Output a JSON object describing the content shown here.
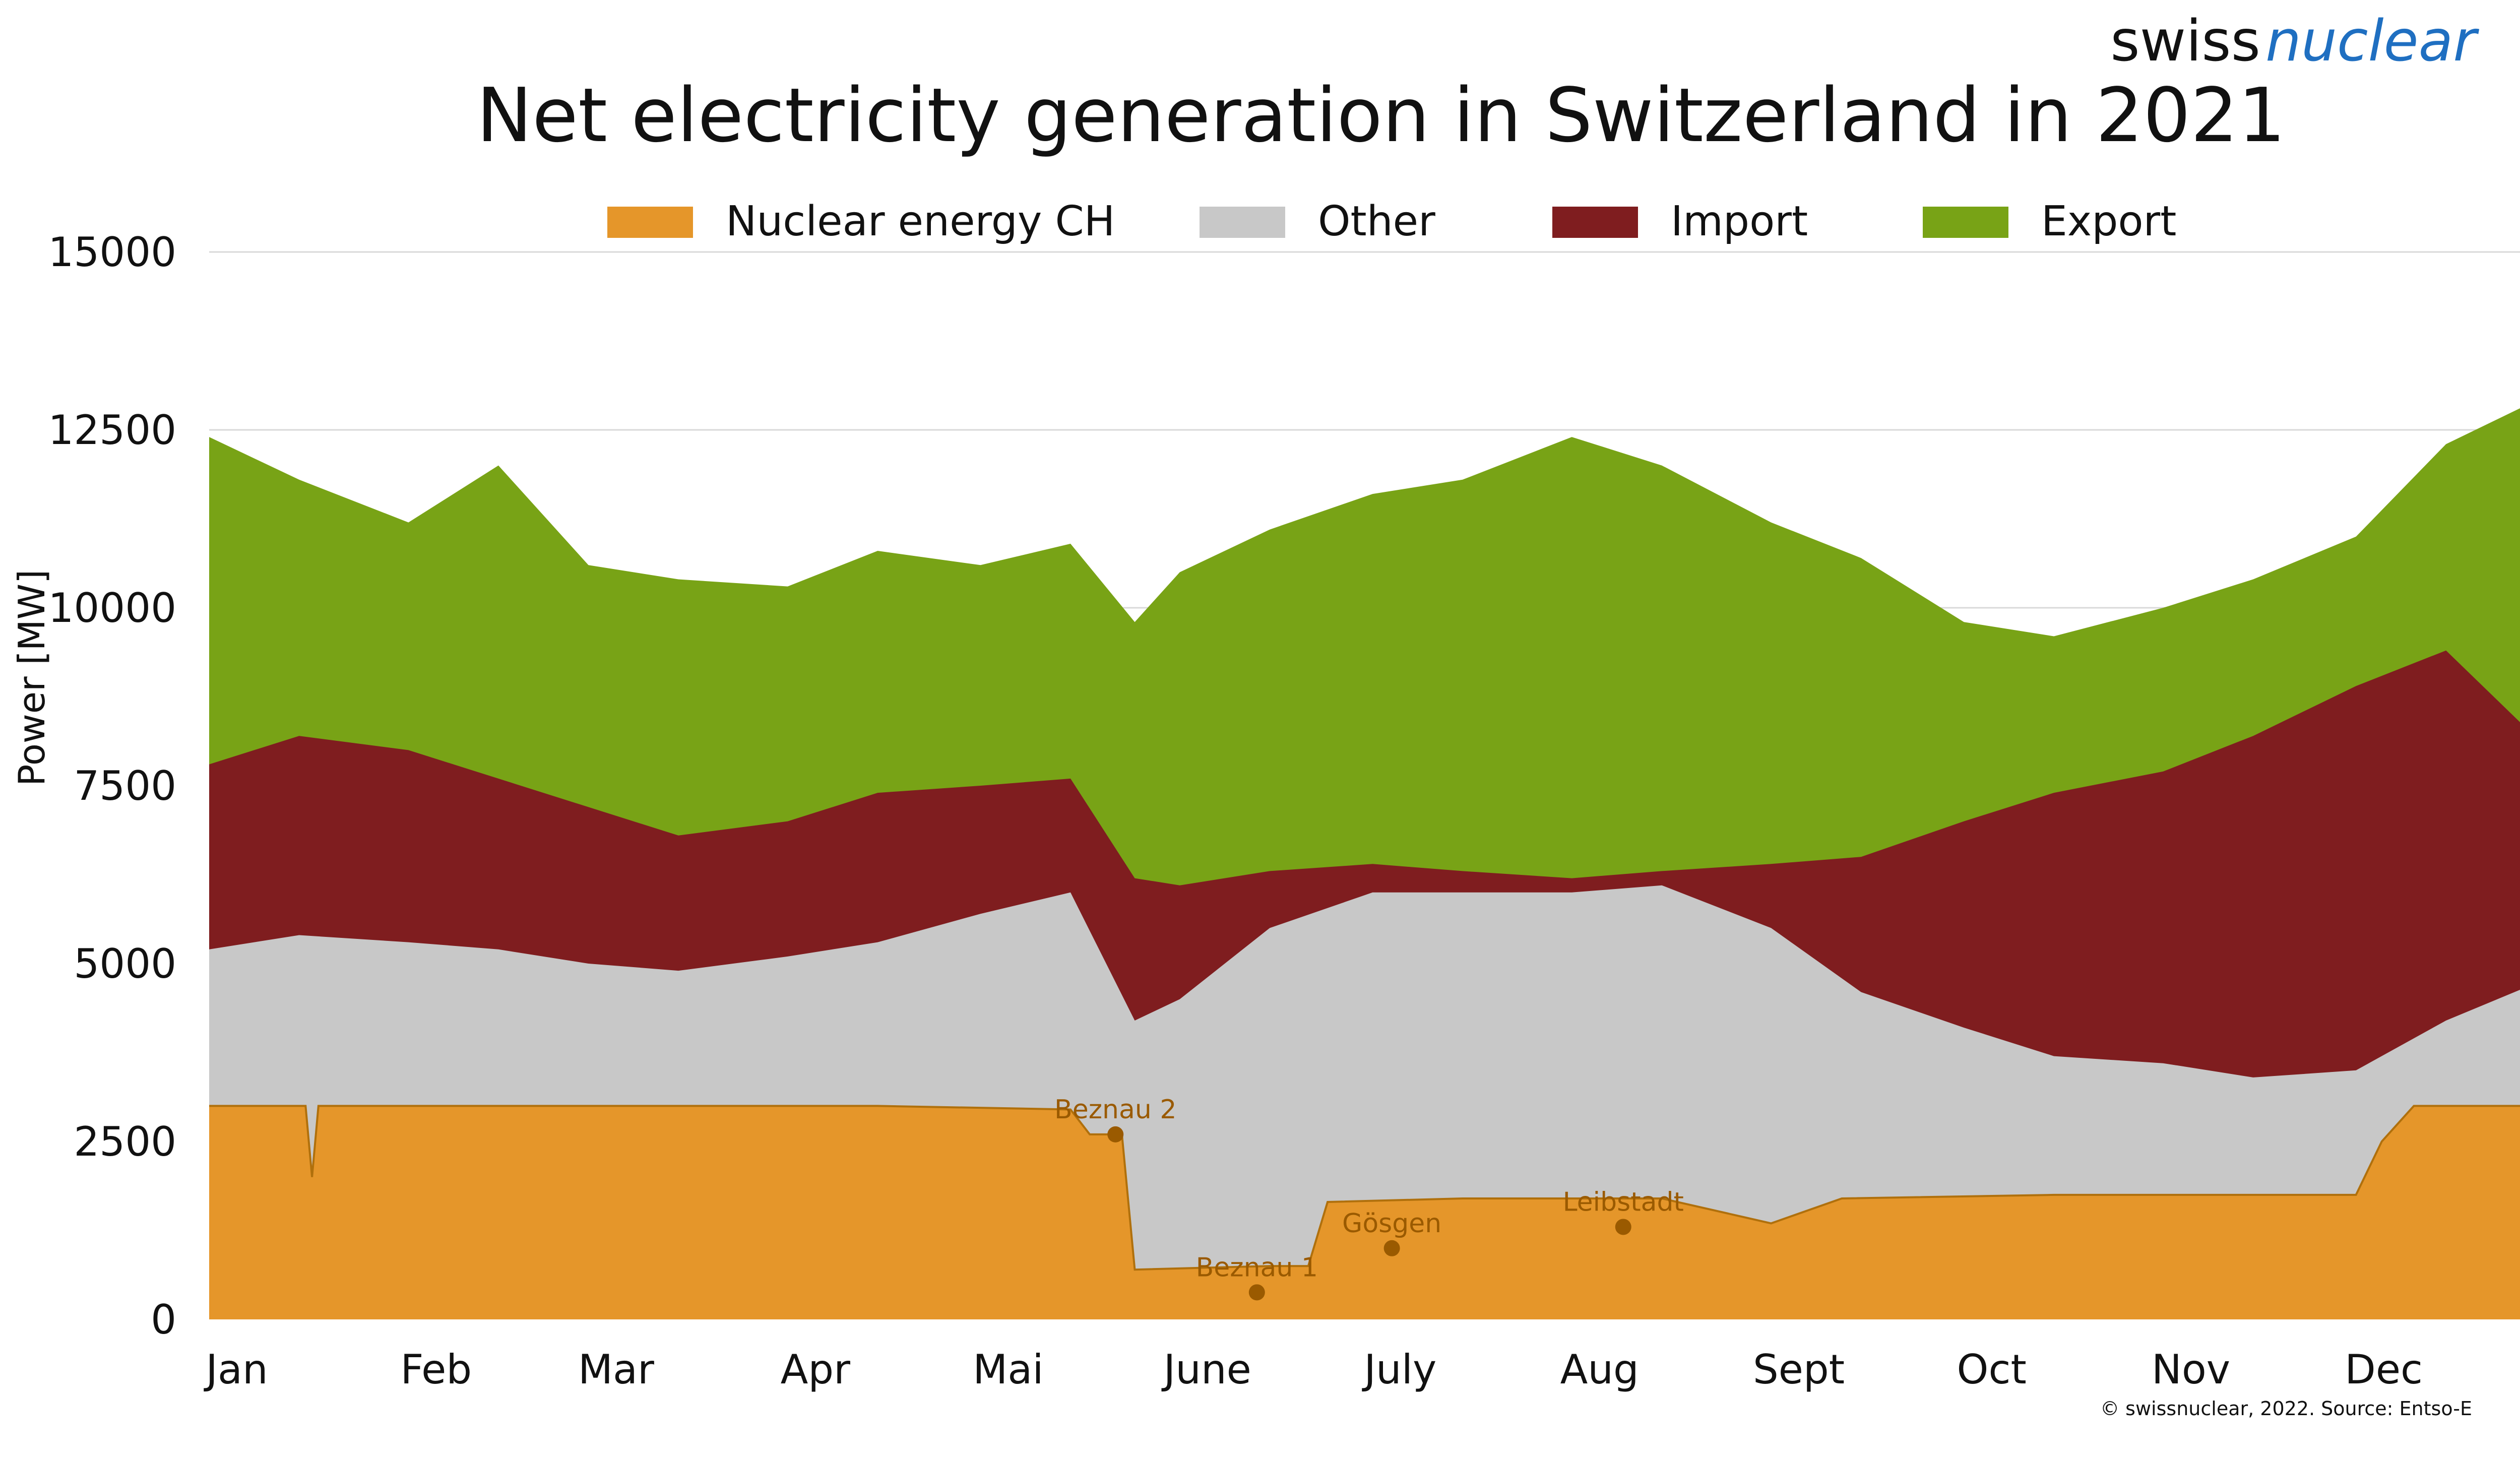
{
  "logo": {
    "part1": "swiss",
    "part2": "nuclear"
  },
  "credit": "© swissnuclear, 2022. Source: Entso-E",
  "colors": {
    "nuclear": "#e5962a",
    "nuclear_line": "#b0700c",
    "other": "#c8c8c8",
    "import": "#7f1d1f",
    "export": "#78a316",
    "grid": "#d9d9d9",
    "annotation": "#9a5a00"
  },
  "chart_data": {
    "type": "area",
    "title": "Net electricity generation in Switzerland in 2021",
    "xlabel": "",
    "ylabel": "Power [MW]",
    "ylim": [
      0,
      15000
    ],
    "yticks": [
      0,
      2500,
      5000,
      7500,
      10000,
      12500,
      15000
    ],
    "grid": true,
    "legend_position": "top",
    "x_tick_labels": [
      "Jan",
      "Feb",
      "Mar",
      "Apr",
      "Mai",
      "June",
      "July",
      "Aug",
      "Sept",
      "Oct",
      "Nov",
      "Dec"
    ],
    "x_month_start": [
      "2021-01-01",
      "2021-02-01",
      "2021-03-01",
      "2021-04-01",
      "2021-05-01",
      "2021-06-01",
      "2021-07-01",
      "2021-08-01",
      "2021-09-01",
      "2021-10-01",
      "2021-11-01",
      "2021-12-01"
    ],
    "legend": [
      "Nuclear energy CH",
      "Other",
      "Import",
      "Export"
    ],
    "series": [
      {
        "name": "Nuclear energy CH",
        "x": [
          "2021-01-01",
          "2021-01-16",
          "2021-01-17",
          "2021-01-18",
          "2021-02-15",
          "2021-03-15",
          "2021-04-15",
          "2021-05-15",
          "2021-05-18",
          "2021-05-23",
          "2021-05-25",
          "2021-06-15",
          "2021-06-21",
          "2021-06-24",
          "2021-07-15",
          "2021-08-15",
          "2021-09-01",
          "2021-09-12",
          "2021-10-15",
          "2021-11-15",
          "2021-12-01",
          "2021-12-05",
          "2021-12-10",
          "2021-12-31"
        ],
        "values": [
          3000,
          3000,
          2000,
          3000,
          3000,
          3000,
          3000,
          2950,
          2600,
          2600,
          700,
          750,
          750,
          1650,
          1700,
          1700,
          1350,
          1700,
          1750,
          1750,
          1750,
          2500,
          3000,
          3000
        ]
      },
      {
        "name": "Other",
        "x": [
          "2021-01-01",
          "2021-01-15",
          "2021-02-01",
          "2021-02-15",
          "2021-03-01",
          "2021-03-15",
          "2021-04-01",
          "2021-04-15",
          "2021-05-01",
          "2021-05-15",
          "2021-05-25",
          "2021-06-01",
          "2021-06-15",
          "2021-07-01",
          "2021-07-15",
          "2021-08-01",
          "2021-08-15",
          "2021-09-01",
          "2021-09-15",
          "2021-10-01",
          "2021-10-15",
          "2021-11-01",
          "2021-11-15",
          "2021-12-01",
          "2021-12-15",
          "2021-12-31"
        ],
        "values": [
          5200,
          5400,
          5300,
          5200,
          5000,
          4900,
          5100,
          5300,
          5700,
          6000,
          4200,
          4500,
          5500,
          6000,
          6000,
          6000,
          6100,
          5500,
          4600,
          4100,
          3700,
          3600,
          3400,
          3500,
          4200,
          4800
        ]
      },
      {
        "name": "Import",
        "x": [
          "2021-01-01",
          "2021-01-15",
          "2021-02-01",
          "2021-02-15",
          "2021-03-01",
          "2021-03-15",
          "2021-04-01",
          "2021-04-15",
          "2021-05-01",
          "2021-05-15",
          "2021-05-25",
          "2021-06-01",
          "2021-06-15",
          "2021-07-01",
          "2021-07-15",
          "2021-08-01",
          "2021-08-15",
          "2021-09-01",
          "2021-09-15",
          "2021-10-01",
          "2021-10-15",
          "2021-11-01",
          "2021-11-15",
          "2021-12-01",
          "2021-12-15",
          "2021-12-31"
        ],
        "values": [
          7800,
          8200,
          8000,
          7600,
          7200,
          6800,
          7000,
          7400,
          7500,
          7600,
          6200,
          6100,
          6300,
          6400,
          6300,
          6200,
          6300,
          6400,
          6500,
          7000,
          7400,
          7700,
          8200,
          8900,
          9400,
          8000
        ]
      },
      {
        "name": "Export",
        "x": [
          "2021-01-01",
          "2021-01-15",
          "2021-02-01",
          "2021-02-15",
          "2021-03-01",
          "2021-03-15",
          "2021-04-01",
          "2021-04-15",
          "2021-05-01",
          "2021-05-15",
          "2021-05-25",
          "2021-06-01",
          "2021-06-15",
          "2021-07-01",
          "2021-07-15",
          "2021-08-01",
          "2021-08-15",
          "2021-09-01",
          "2021-09-15",
          "2021-10-01",
          "2021-10-15",
          "2021-11-01",
          "2021-11-15",
          "2021-12-01",
          "2021-12-15",
          "2021-12-31"
        ],
        "values": [
          12400,
          11800,
          11200,
          12000,
          10600,
          10400,
          10300,
          10800,
          10600,
          10900,
          9800,
          10500,
          11100,
          11600,
          11800,
          12400,
          12000,
          11200,
          10700,
          9800,
          9600,
          10000,
          10400,
          11000,
          12300,
          13000
        ]
      }
    ],
    "annotations": [
      {
        "label": "Beznau 2",
        "x": "2021-05-22",
        "y": 2600
      },
      {
        "label": "Beznau 1",
        "x": "2021-06-13",
        "y": 380
      },
      {
        "label": "Gösgen",
        "x": "2021-07-04",
        "y": 1000
      },
      {
        "label": "Leibstadt",
        "x": "2021-08-09",
        "y": 1300
      }
    ]
  }
}
